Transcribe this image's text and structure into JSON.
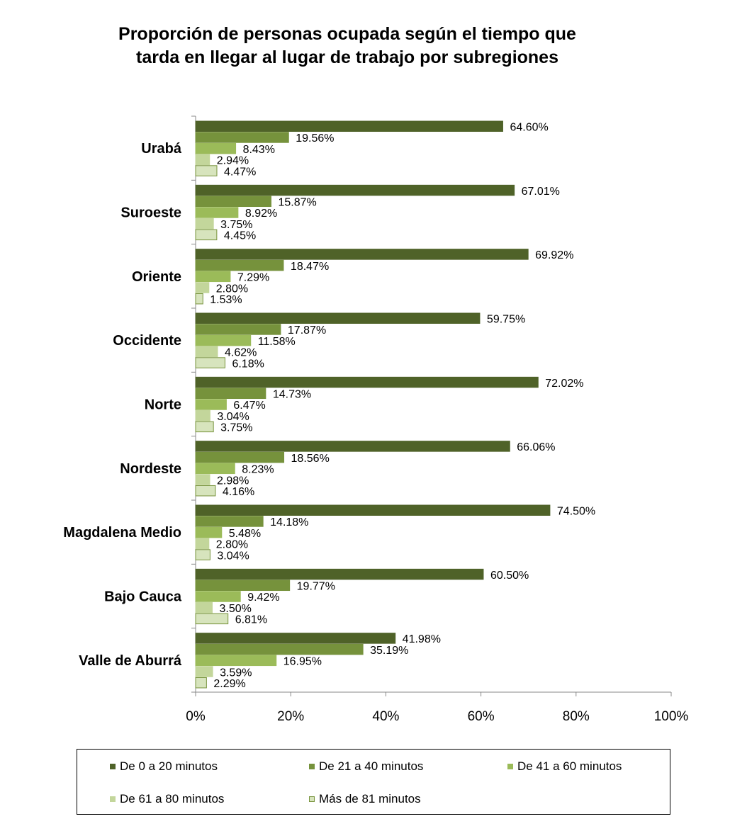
{
  "title_lines": [
    "Proporción de personas ocupada según el tiempo que",
    "tarda en llegar al lugar de trabajo  por subregiones"
  ],
  "chart_data": {
    "type": "bar",
    "orientation": "horizontal",
    "title": "Proporción de personas ocupada según el tiempo que tarda en llegar al lugar de trabajo  por subregiones",
    "categories": [
      "Urabá",
      "Suroeste",
      "Oriente",
      "Occidente",
      "Norte",
      "Nordeste",
      "Magdalena Medio",
      "Bajo Cauca",
      "Valle de Aburrá"
    ],
    "series": [
      {
        "name": "De 0 a 20 minutos",
        "color": "#4f6228",
        "border": "#4f6228",
        "values": [
          64.6,
          67.01,
          69.92,
          59.75,
          72.02,
          66.06,
          74.5,
          60.5,
          41.98
        ]
      },
      {
        "name": "De 21 a 40 minutos",
        "color": "#76923c",
        "border": "#76923c",
        "values": [
          19.56,
          15.87,
          18.47,
          17.87,
          14.73,
          18.56,
          14.18,
          19.77,
          35.19
        ]
      },
      {
        "name": "De 41 a 60 minutos",
        "color": "#9bbb59",
        "border": "#9bbb59",
        "values": [
          8.43,
          8.92,
          7.29,
          11.58,
          6.47,
          8.23,
          5.48,
          9.42,
          16.95
        ]
      },
      {
        "name": "De 61 a 80 minutos",
        "color": "#c3d69b",
        "border": "#c3d69b",
        "values": [
          2.94,
          3.75,
          2.8,
          4.62,
          3.04,
          2.98,
          2.8,
          3.5,
          3.59
        ]
      },
      {
        "name": "Más de 81 minutos",
        "color": "#d7e4bd",
        "border": "#77933c",
        "values": [
          4.47,
          4.45,
          1.53,
          6.18,
          3.75,
          4.16,
          3.04,
          6.81,
          2.29
        ]
      }
    ],
    "value_labels": [
      [
        "64.60%",
        "19.56%",
        "8.43%",
        "2.94%",
        "4.47%"
      ],
      [
        "67.01%",
        "15.87%",
        "8.92%",
        "3.75%",
        "4.45%"
      ],
      [
        "69.92%",
        "18.47%",
        "7.29%",
        "2.80%",
        "1.53%"
      ],
      [
        "59.75%",
        "17.87%",
        "11.58%",
        "4.62%",
        "6.18%"
      ],
      [
        "72.02%",
        "14.73%",
        "6.47%",
        "3.04%",
        "3.75%"
      ],
      [
        "66.06%",
        "18.56%",
        "8.23%",
        "2.98%",
        "4.16%"
      ],
      [
        "74.50%",
        "14.18%",
        "5.48%",
        "2.80%",
        "3.04%"
      ],
      [
        "60.50%",
        "19.77%",
        "9.42%",
        "3.50%",
        "6.81%"
      ],
      [
        "41.98%",
        "35.19%",
        "16.95%",
        "3.59%",
        "2.29%"
      ]
    ],
    "xlim": [
      0,
      100
    ],
    "xticks": [
      0,
      20,
      40,
      60,
      80,
      100
    ],
    "xtick_labels": [
      "0%",
      "20%",
      "40%",
      "60%",
      "80%",
      "100%"
    ],
    "grid": false,
    "legend_position": "bottom"
  }
}
